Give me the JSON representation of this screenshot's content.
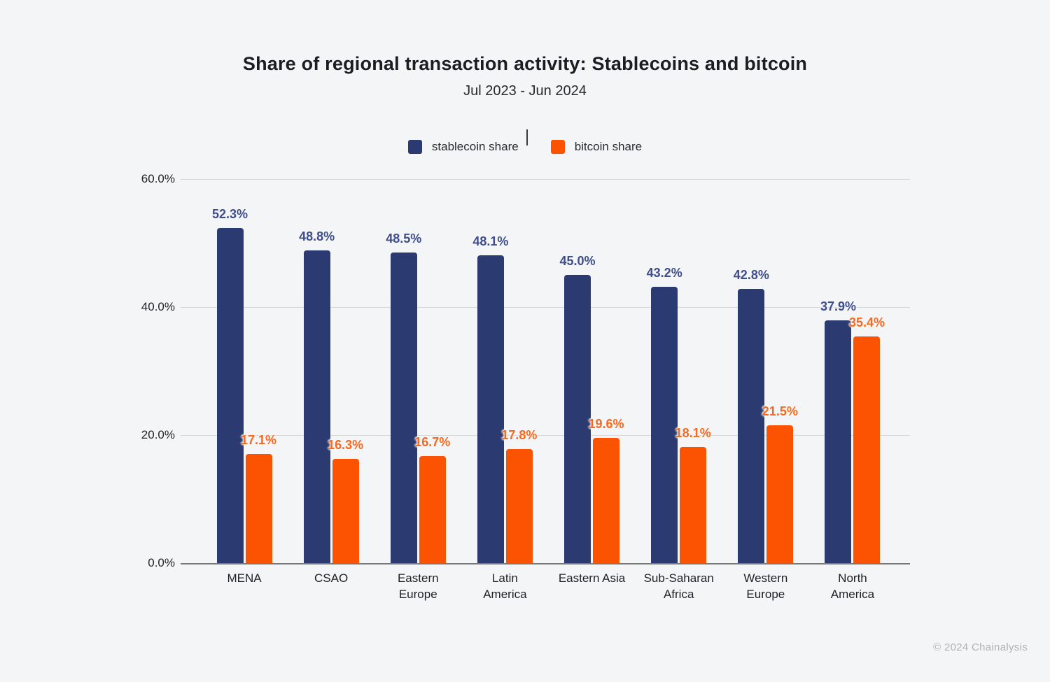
{
  "page": {
    "background": "#F4F5F6",
    "footer": {
      "text": "© 2024 Chainalysis",
      "color": "#B2B2B5"
    }
  },
  "chart_data": {
    "type": "bar",
    "title": "Share of regional transaction activity: Stablecoins and bitcoin",
    "subtitle": "Jul 2023 - Jun 2024",
    "legend_position": "top",
    "grid": true,
    "categories": [
      "MENA",
      "CSAO",
      "Eastern Europe",
      "Latin America",
      "Eastern Asia",
      "Sub-Saharan Africa",
      "Western Europe",
      "North America"
    ],
    "categories_display": [
      "MENA",
      "CSAO",
      "Eastern\nEurope",
      "Latin\nAmerica",
      "Eastern Asia",
      "Sub-Saharan\nAfrica",
      "Western\nEurope",
      "North\nAmerica"
    ],
    "series": [
      {
        "name": "stablecoin share",
        "color": "#2B3A70",
        "label_color": "#3F4E8A",
        "values": [
          52.3,
          48.8,
          48.5,
          48.1,
          45.0,
          43.2,
          42.8,
          37.9
        ],
        "labels": [
          "52.3%",
          "48.8%",
          "48.5%",
          "48.1%",
          "45.0%",
          "43.2%",
          "42.8%",
          "37.9%"
        ]
      },
      {
        "name": "bitcoin share",
        "color": "#FC5303",
        "label_color": "#F9681C",
        "values": [
          17.1,
          16.3,
          16.7,
          17.8,
          19.6,
          18.1,
          21.5,
          35.4
        ],
        "labels": [
          "17.1%",
          "16.3%",
          "16.7%",
          "17.8%",
          "19.6%",
          "18.1%",
          "21.5%",
          "35.4%"
        ]
      }
    ],
    "y_axis": {
      "min": 0,
      "max": 60,
      "ticks": [
        {
          "label": "0.0%",
          "value": 0
        },
        {
          "label": "20.0%",
          "value": 20
        },
        {
          "label": "40.0%",
          "value": 40
        },
        {
          "label": "60.0%",
          "value": 60
        }
      ],
      "gridline_color": "#D7D7DA",
      "axis_color": "#77787A",
      "tick_color": "#232528"
    }
  }
}
